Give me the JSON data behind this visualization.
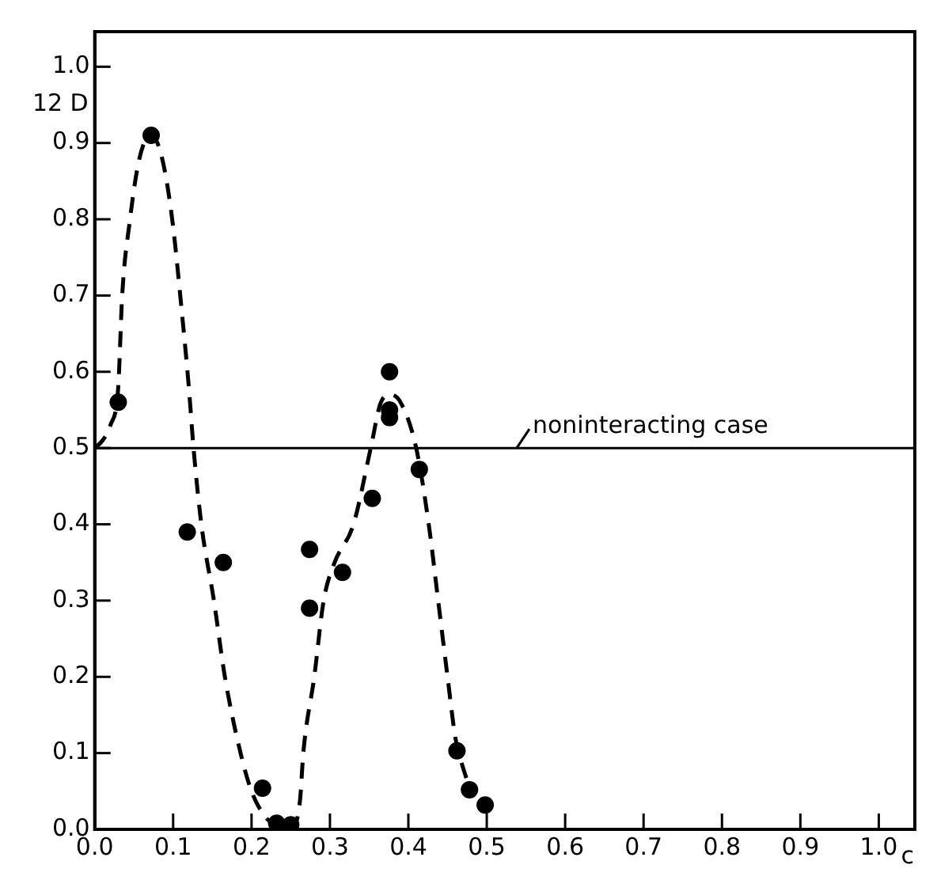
{
  "chart_data": {
    "type": "scatter",
    "xlabel": "c",
    "ylabel": "12 D",
    "xlim": [
      0,
      1.046
    ],
    "ylim": [
      0,
      1.046
    ],
    "xticks": [
      {
        "value": 0,
        "label": "0.0"
      },
      0.1,
      0.2,
      0.3,
      0.4,
      0.5,
      0.6,
      0.7,
      0.8,
      0.9,
      {
        "value": 1,
        "label": "1.0"
      }
    ],
    "yticks": [
      {
        "value": 0,
        "label": "0.0"
      },
      0.1,
      0.2,
      0.3,
      0.4,
      0.5,
      0.6,
      0.7,
      0.8,
      0.9,
      {
        "value": 1,
        "label": "1.0"
      }
    ],
    "grid": false,
    "series": [
      {
        "color": "#000000",
        "marker": "circle",
        "x": [
          0.03,
          0.072,
          0.118,
          0.164,
          0.214,
          0.232,
          0.25,
          0.274,
          0.274,
          0.316,
          0.354,
          0.376,
          0.376,
          0.376,
          0.414,
          0.462,
          0.478,
          0.498
        ],
        "values": [
          0.56,
          0.91,
          0.39,
          0.35,
          0.054,
          0.008,
          0.006,
          0.367,
          0.29,
          0.337,
          0.434,
          0.6,
          0.55,
          0.54,
          0.472,
          0.103,
          0.052,
          0.032
        ]
      },
      {
        "type": "line",
        "color": "#000000",
        "marker": "none",
        "line_style": "dashed",
        "x": [
          0,
          0.01,
          0.02,
          0.03,
          0.035,
          0.045,
          0.055,
          0.065,
          0.072,
          0.08,
          0.09,
          0.1,
          0.11,
          0.12,
          0.126,
          0.136,
          0.152,
          0.166,
          0.186,
          0.2,
          0.215,
          0.23,
          0.245,
          0.255,
          0.262,
          0.266,
          0.28,
          0.292,
          0.306,
          0.33,
          0.352,
          0.365,
          0.377,
          0.39,
          0.41,
          0.426,
          0.438,
          0.45,
          0.46,
          0.47,
          0.48
        ],
        "values": [
          0.5,
          0.51,
          0.53,
          0.58,
          0.7,
          0.8,
          0.87,
          0.905,
          0.91,
          0.9,
          0.86,
          0.79,
          0.69,
          0.58,
          0.5,
          0.4,
          0.3,
          0.2,
          0.1,
          0.05,
          0.02,
          0.005,
          0,
          0.005,
          0.04,
          0.1,
          0.2,
          0.3,
          0.35,
          0.4,
          0.5,
          0.56,
          0.57,
          0.56,
          0.5,
          0.4,
          0.3,
          0.2,
          0.12,
          0.08,
          0.05
        ]
      }
    ],
    "ref_lines": [
      {
        "axis": "y",
        "value": 0.5,
        "label": "noninteracting case",
        "color": "#000000",
        "line_style": "solid"
      }
    ]
  }
}
